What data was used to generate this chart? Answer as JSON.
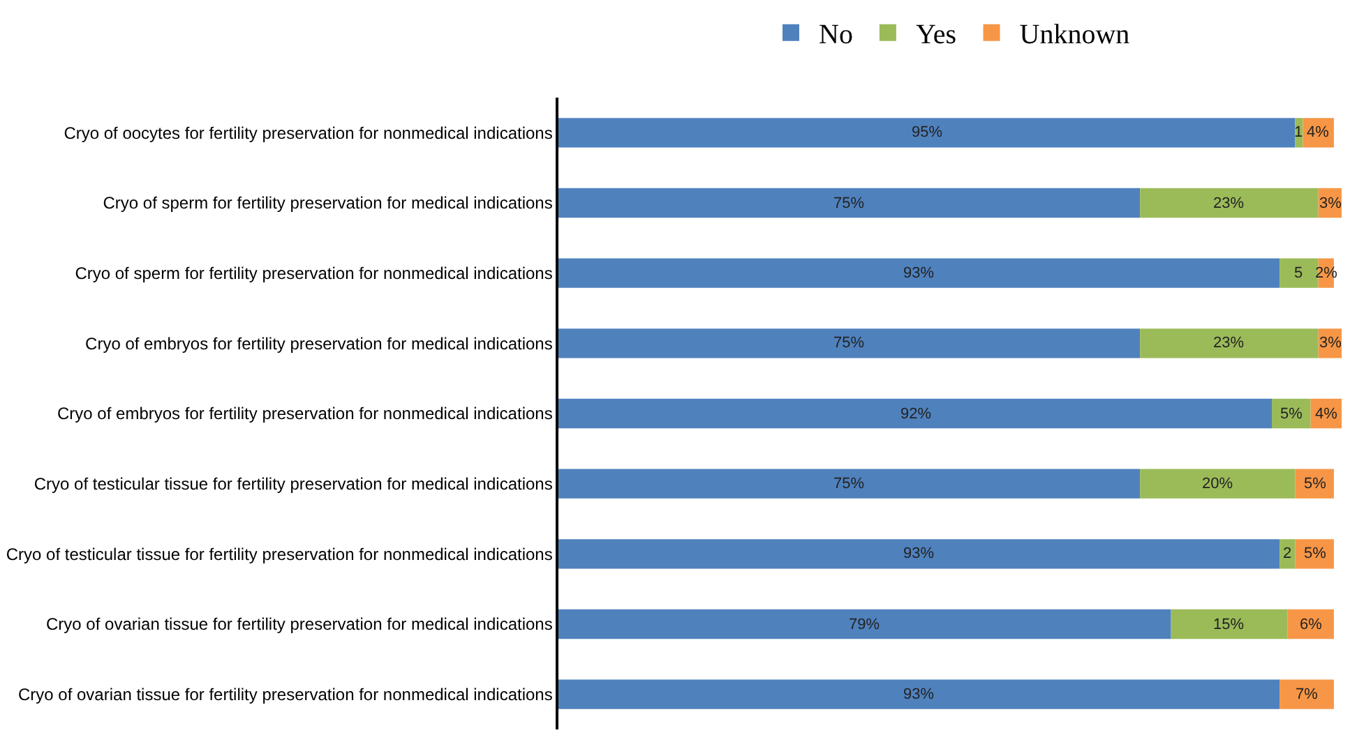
{
  "chart_data": {
    "type": "bar",
    "orientation": "horizontal",
    "stacked": true,
    "legend": "top",
    "tick_labels": "y",
    "xlim": [
      0,
      101
    ],
    "categories": [
      "Cryo of oocytes for fertility preservation for nonmedical indications",
      "Cryo of sperm for fertility preservation for medical indications",
      "Cryo of sperm for fertility preservation for nonmedical indications",
      "Cryo of embryos for fertility preservation for medical indications",
      "Cryo of embryos for fertility preservation for nonmedical indications",
      "Cryo of testicular tissue for fertility preservation for medical indications",
      "Cryo of testicular tissue for fertility preservation for nonmedical indications",
      "Cryo of ovarian tissue for fertility preservation for medical indications",
      "Cryo of ovarian tissue for fertility preservation for nonmedical indications"
    ],
    "series": [
      {
        "name": "No",
        "color": "#4f81bd",
        "values": [
          95,
          75,
          93,
          75,
          92,
          75,
          93,
          79,
          93
        ],
        "value_labels": [
          "95%",
          "75%",
          "93%",
          "75%",
          "92%",
          "75%",
          "93%",
          "79%",
          "93%"
        ]
      },
      {
        "name": "Yes",
        "color": "#9bbb59",
        "values": [
          1,
          23,
          5,
          23,
          5,
          20,
          2,
          15,
          null
        ],
        "value_labels": [
          "1",
          "23%",
          "5",
          "23%",
          "5%",
          "20%",
          "2",
          "15%",
          null
        ]
      },
      {
        "name": "Unknown",
        "color": "#f79646",
        "values": [
          4,
          3,
          2,
          3,
          4,
          5,
          5,
          6,
          7
        ],
        "value_labels": [
          "4%",
          "3%",
          "2%",
          "3%",
          "4%",
          "5%",
          "5%",
          "6%",
          "7%"
        ]
      }
    ]
  }
}
